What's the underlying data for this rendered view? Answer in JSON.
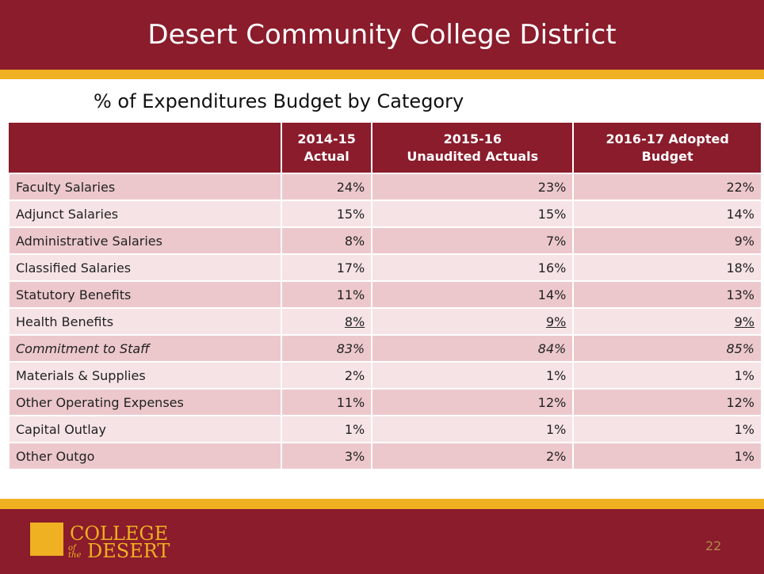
{
  "header": {
    "title": "Desert Community College District"
  },
  "subtitle": "% of Expenditures Budget by Category",
  "table": {
    "columns": [
      [
        "2014-15",
        "Actual"
      ],
      [
        "2015-16",
        "Unaudited Actuals"
      ],
      [
        "2016-17 Adopted",
        "Budget"
      ]
    ],
    "rows": [
      [
        "Faculty Salaries",
        "24%",
        "23%",
        "22%"
      ],
      [
        "Adjunct Salaries",
        "15%",
        "15%",
        "14%"
      ],
      [
        "Administrative Salaries",
        "8%",
        "7%",
        "9%"
      ],
      [
        "Classified Salaries",
        "17%",
        "16%",
        "18%"
      ],
      [
        "Statutory Benefits",
        "11%",
        "14%",
        "13%"
      ],
      [
        "Health Benefits",
        "8%",
        "9%",
        "9%"
      ],
      [
        "Commitment to Staff",
        "83%",
        "84%",
        "85%"
      ],
      [
        "Materials & Supplies",
        "2%",
        "1%",
        "1%"
      ],
      [
        "Other Operating Expenses",
        "11%",
        "12%",
        "12%"
      ],
      [
        "Capital Outlay",
        "1%",
        "1%",
        "1%"
      ],
      [
        "Other Outgo",
        "3%",
        "2%",
        "1%"
      ]
    ]
  },
  "footer": {
    "logo": [
      "COLLEGE",
      "of the",
      "DESERT"
    ],
    "page_number": "22"
  }
}
